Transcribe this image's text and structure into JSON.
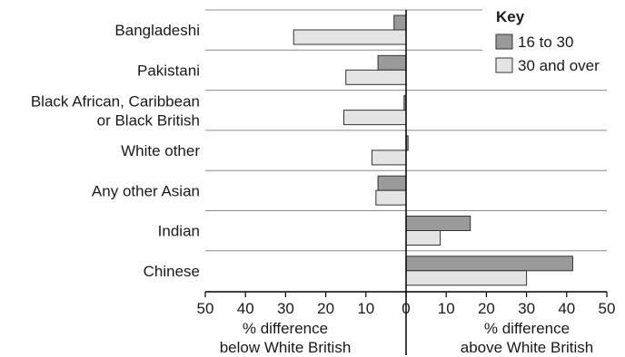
{
  "chart_data": {
    "type": "bar",
    "orientation": "horizontal",
    "categories": [
      "Bangladeshi",
      "Pakistani",
      "Black African, Caribbean or Black British",
      "White other",
      "Any other Asian",
      "Indian",
      "Chinese"
    ],
    "category_lines": [
      [
        "Bangladeshi"
      ],
      [
        "Pakistani"
      ],
      [
        "Black African, Caribbean",
        "or Black British"
      ],
      [
        "White other"
      ],
      [
        "Any other Asian"
      ],
      [
        "Indian"
      ],
      [
        "Chinese"
      ]
    ],
    "series": [
      {
        "name": "16 to 30",
        "color": "#9a9a9a",
        "values": [
          -3,
          -7,
          -0.5,
          0.5,
          -7,
          16,
          41.5
        ]
      },
      {
        "name": "30 and over",
        "color": "#e4e4e4",
        "values": [
          -28,
          -15,
          -15.5,
          -8.5,
          -7.5,
          8.5,
          30
        ]
      }
    ],
    "x_axis": {
      "range": [
        -50,
        50
      ],
      "ticks": [
        -50,
        -40,
        -30,
        -20,
        -10,
        0,
        10,
        20,
        30,
        40,
        50
      ],
      "tick_labels": [
        "50",
        "40",
        "30",
        "20",
        "10",
        "0",
        "10",
        "20",
        "30",
        "40",
        "50"
      ],
      "title_left": [
        "% difference",
        "below White British"
      ],
      "title_right": [
        "% difference",
        "above White British"
      ]
    },
    "legend": {
      "title": "Key",
      "position": "top-right"
    },
    "grid": "horizontal separators between categories"
  }
}
